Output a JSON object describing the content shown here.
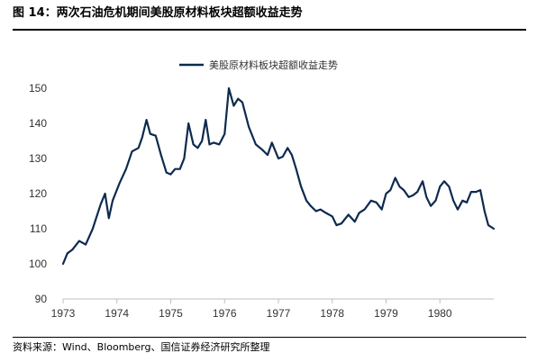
{
  "figure": {
    "title": "图 14：两次石油危机期间美股原材料板块超额收益走势",
    "source": "资料来源：Wind、Bloomberg、国信证券经济研究所整理"
  },
  "chart_data": {
    "type": "line",
    "title": "",
    "xlabel": "",
    "ylabel": "",
    "x_ticks": [
      "1973",
      "1974",
      "1975",
      "1976",
      "1977",
      "1978",
      "1979",
      "1980"
    ],
    "y_ticks": [
      90,
      100,
      110,
      120,
      130,
      140,
      150
    ],
    "xlim": [
      1973.0,
      1981.0
    ],
    "ylim": [
      90,
      150
    ],
    "grid": false,
    "legend": "top-center",
    "colors": {
      "series": "#0d2a4e",
      "axis": "#bfbfbf"
    },
    "series": [
      {
        "name": "美股原材料板块超额收益走势",
        "points": [
          [
            1973.0,
            100.0
          ],
          [
            1973.08,
            103.0
          ],
          [
            1973.17,
            104.0
          ],
          [
            1973.3,
            106.5
          ],
          [
            1973.42,
            105.5
          ],
          [
            1973.55,
            110.0
          ],
          [
            1973.7,
            117.0
          ],
          [
            1973.78,
            120.0
          ],
          [
            1973.85,
            113.0
          ],
          [
            1973.92,
            118.0
          ],
          [
            1974.05,
            123.0
          ],
          [
            1974.17,
            127.0
          ],
          [
            1974.28,
            132.0
          ],
          [
            1974.4,
            133.0
          ],
          [
            1974.47,
            136.0
          ],
          [
            1974.55,
            141.0
          ],
          [
            1974.62,
            137.0
          ],
          [
            1974.72,
            136.5
          ],
          [
            1974.82,
            131.0
          ],
          [
            1974.92,
            126.0
          ],
          [
            1975.0,
            125.5
          ],
          [
            1975.08,
            127.0
          ],
          [
            1975.17,
            127.0
          ],
          [
            1975.25,
            130.0
          ],
          [
            1975.33,
            140.0
          ],
          [
            1975.42,
            134.0
          ],
          [
            1975.5,
            133.0
          ],
          [
            1975.58,
            135.0
          ],
          [
            1975.65,
            141.0
          ],
          [
            1975.72,
            134.0
          ],
          [
            1975.8,
            134.5
          ],
          [
            1975.9,
            134.0
          ],
          [
            1976.0,
            137.0
          ],
          [
            1976.08,
            150.0
          ],
          [
            1976.17,
            145.0
          ],
          [
            1976.25,
            147.0
          ],
          [
            1976.33,
            146.0
          ],
          [
            1976.45,
            139.0
          ],
          [
            1976.58,
            134.0
          ],
          [
            1976.7,
            132.5
          ],
          [
            1976.8,
            131.0
          ],
          [
            1976.88,
            134.5
          ],
          [
            1977.0,
            130.0
          ],
          [
            1977.08,
            130.5
          ],
          [
            1977.17,
            133.0
          ],
          [
            1977.25,
            131.0
          ],
          [
            1977.33,
            127.0
          ],
          [
            1977.42,
            122.0
          ],
          [
            1977.52,
            118.0
          ],
          [
            1977.6,
            116.5
          ],
          [
            1977.7,
            115.0
          ],
          [
            1977.78,
            115.5
          ],
          [
            1977.88,
            114.5
          ],
          [
            1978.0,
            113.5
          ],
          [
            1978.08,
            111.0
          ],
          [
            1978.17,
            111.5
          ],
          [
            1978.3,
            114.0
          ],
          [
            1978.42,
            112.0
          ],
          [
            1978.5,
            114.5
          ],
          [
            1978.6,
            115.5
          ],
          [
            1978.72,
            118.0
          ],
          [
            1978.82,
            117.5
          ],
          [
            1978.92,
            115.5
          ],
          [
            1979.0,
            120.0
          ],
          [
            1979.08,
            121.0
          ],
          [
            1979.17,
            124.5
          ],
          [
            1979.25,
            122.0
          ],
          [
            1979.33,
            121.0
          ],
          [
            1979.42,
            119.0
          ],
          [
            1979.5,
            119.5
          ],
          [
            1979.58,
            120.5
          ],
          [
            1979.68,
            123.5
          ],
          [
            1979.75,
            119.0
          ],
          [
            1979.83,
            116.5
          ],
          [
            1979.92,
            118.0
          ],
          [
            1980.0,
            122.0
          ],
          [
            1980.08,
            123.5
          ],
          [
            1980.17,
            122.0
          ],
          [
            1980.25,
            118.0
          ],
          [
            1980.33,
            115.5
          ],
          [
            1980.42,
            118.0
          ],
          [
            1980.5,
            117.5
          ],
          [
            1980.58,
            120.5
          ],
          [
            1980.67,
            120.5
          ],
          [
            1980.75,
            121.0
          ],
          [
            1980.83,
            115.0
          ],
          [
            1980.9,
            111.0
          ],
          [
            1981.0,
            110.0
          ]
        ]
      }
    ]
  }
}
